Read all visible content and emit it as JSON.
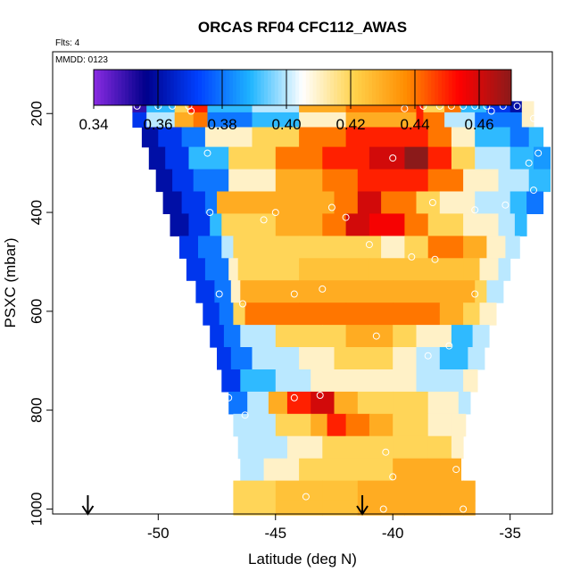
{
  "chart_data": {
    "type": "heatmap",
    "title": "ORCAS RF04 CFC112_AWAS",
    "subtitle_flights": "Flts: 4",
    "subtitle_date": "MMDD: 0123",
    "xlabel": "Latitude (deg N)",
    "ylabel": "PSXC (mbar)",
    "xlim": [
      -54.5,
      -33.2
    ],
    "ylim_reversed": [
      1010,
      75
    ],
    "x_ticks": [
      -50,
      -45,
      -40,
      -35
    ],
    "x_tick_labels": [
      "-50",
      "-45",
      "-40",
      "-35"
    ],
    "y_ticks": [
      200,
      400,
      600,
      800,
      1000
    ],
    "y_tick_labels": [
      "200",
      "400",
      "600",
      "800",
      "1000"
    ],
    "colorbar": {
      "min": 0.34,
      "max": 0.47,
      "ticks": [
        0.34,
        0.36,
        0.38,
        0.4,
        0.42,
        0.44,
        0.46
      ],
      "tick_labels": [
        "0.34",
        "0.36",
        "0.38",
        "0.40",
        "0.42",
        "0.44",
        "0.46"
      ],
      "colors": [
        "#8a2be2",
        "#00008b",
        "#0040ff",
        "#1eb4ff",
        "#ffffff",
        "#ffd24a",
        "#ff8c00",
        "#ff0000",
        "#8b1a1a"
      ]
    },
    "bands": [
      {
        "p": 185,
        "x0": -51.1,
        "x1": -34.0,
        "segs": [
          [
            -51.1,
            0.35
          ],
          [
            -50.5,
            0.39
          ],
          [
            -49.3,
            0.42
          ],
          [
            -48.7,
            0.45
          ],
          [
            -47.9,
            0.39
          ],
          [
            -46,
            0.4
          ],
          [
            -44,
            0.43
          ],
          [
            -42,
            0.44
          ],
          [
            -40,
            0.44
          ],
          [
            -39,
            0.45
          ],
          [
            -38.7,
            0.42
          ],
          [
            -37.8,
            0.44
          ],
          [
            -37.1,
            0.39
          ],
          [
            -36,
            0.37
          ],
          [
            -35,
            0.36
          ],
          [
            -34.5,
            0.41
          ]
        ]
      },
      {
        "p": 210,
        "x0": -51.1,
        "x1": -34.0,
        "segs": [
          [
            -51.1,
            0.37
          ],
          [
            -50.5,
            0.4
          ],
          [
            -49.3,
            0.43
          ],
          [
            -48.5,
            0.44
          ],
          [
            -47.9,
            0.38
          ],
          [
            -46,
            0.39
          ],
          [
            -44,
            0.41
          ],
          [
            -42,
            0.43
          ],
          [
            -40,
            0.43
          ],
          [
            -39,
            0.45
          ],
          [
            -38.7,
            0.44
          ],
          [
            -37.8,
            0.4
          ],
          [
            -36.5,
            0.38
          ],
          [
            -35,
            0.38
          ],
          [
            -34.5,
            0.41
          ]
        ]
      },
      {
        "p": 245,
        "x0": -50.7,
        "x1": -33.6,
        "segs": [
          [
            -50.7,
            0.36
          ],
          [
            -50,
            0.37
          ],
          [
            -49,
            0.38
          ],
          [
            -48,
            0.41
          ],
          [
            -46,
            0.42
          ],
          [
            -44,
            0.44
          ],
          [
            -42,
            0.45
          ],
          [
            -40,
            0.45
          ],
          [
            -38.5,
            0.44
          ],
          [
            -37.5,
            0.41
          ],
          [
            -36.5,
            0.39
          ],
          [
            -35,
            0.38
          ],
          [
            -34.2,
            0.39
          ]
        ]
      },
      {
        "p": 290,
        "x0": -50.4,
        "x1": -33.3,
        "segs": [
          [
            -50.4,
            0.36
          ],
          [
            -49.7,
            0.37
          ],
          [
            -48.7,
            0.39
          ],
          [
            -47,
            0.42
          ],
          [
            -45,
            0.44
          ],
          [
            -43,
            0.45
          ],
          [
            -41,
            0.46
          ],
          [
            -39.5,
            0.47
          ],
          [
            -38.5,
            0.45
          ],
          [
            -37.5,
            0.42
          ],
          [
            -36.5,
            0.4
          ],
          [
            -35,
            0.39
          ],
          [
            -34,
            0.385
          ]
        ]
      },
      {
        "p": 335,
        "x0": -50.1,
        "x1": -33.3,
        "segs": [
          [
            -50.1,
            0.36
          ],
          [
            -49.4,
            0.37
          ],
          [
            -48.5,
            0.38
          ],
          [
            -47,
            0.41
          ],
          [
            -45,
            0.43
          ],
          [
            -43,
            0.44
          ],
          [
            -41.5,
            0.45
          ],
          [
            -39.5,
            0.45
          ],
          [
            -38.5,
            0.44
          ],
          [
            -37,
            0.41
          ],
          [
            -35.5,
            0.4
          ],
          [
            -34.2,
            0.39
          ]
        ]
      },
      {
        "p": 380,
        "x0": -49.8,
        "x1": -33.6,
        "segs": [
          [
            -49.8,
            0.36
          ],
          [
            -49,
            0.37
          ],
          [
            -48,
            0.38
          ],
          [
            -47.5,
            0.43
          ],
          [
            -46,
            0.43
          ],
          [
            -44,
            0.43
          ],
          [
            -42.5,
            0.44
          ],
          [
            -41.5,
            0.46
          ],
          [
            -40.5,
            0.44
          ],
          [
            -39,
            0.42
          ],
          [
            -38,
            0.41
          ],
          [
            -36.5,
            0.4
          ],
          [
            -35,
            0.39
          ],
          [
            -34.3,
            0.38
          ]
        ]
      },
      {
        "p": 425,
        "x0": -49.5,
        "x1": -34.3,
        "segs": [
          [
            -49.5,
            0.36
          ],
          [
            -48.7,
            0.37
          ],
          [
            -47.8,
            0.39
          ],
          [
            -47.3,
            0.42
          ],
          [
            -45,
            0.43
          ],
          [
            -43,
            0.44
          ],
          [
            -42,
            0.46
          ],
          [
            -41,
            0.455
          ],
          [
            -39.5,
            0.44
          ],
          [
            -38.5,
            0.42
          ],
          [
            -37,
            0.41
          ],
          [
            -35.5,
            0.4
          ],
          [
            -34.8,
            0.39
          ]
        ]
      },
      {
        "p": 470,
        "x0": -49.1,
        "x1": -34.6,
        "segs": [
          [
            -49.1,
            0.37
          ],
          [
            -48.3,
            0.38
          ],
          [
            -47.3,
            0.4
          ],
          [
            -46.8,
            0.42
          ],
          [
            -44,
            0.42
          ],
          [
            -42,
            0.42
          ],
          [
            -40.5,
            0.41
          ],
          [
            -39.5,
            0.42
          ],
          [
            -38.5,
            0.44
          ],
          [
            -37,
            0.43
          ],
          [
            -36,
            0.41
          ],
          [
            -35.2,
            0.4
          ]
        ]
      },
      {
        "p": 515,
        "x0": -48.8,
        "x1": -35.0,
        "segs": [
          [
            -48.8,
            0.37
          ],
          [
            -48,
            0.38
          ],
          [
            -47,
            0.41
          ],
          [
            -46.6,
            0.42
          ],
          [
            -44,
            0.425
          ],
          [
            -41,
            0.425
          ],
          [
            -39,
            0.425
          ],
          [
            -37,
            0.425
          ],
          [
            -36.3,
            0.41
          ],
          [
            -35.5,
            0.4
          ]
        ]
      },
      {
        "p": 560,
        "x0": -48.4,
        "x1": -35.3,
        "segs": [
          [
            -48.4,
            0.37
          ],
          [
            -47.6,
            0.38
          ],
          [
            -46.9,
            0.41
          ],
          [
            -46.5,
            0.43
          ],
          [
            -44,
            0.43
          ],
          [
            -42,
            0.43
          ],
          [
            -40,
            0.43
          ],
          [
            -38,
            0.43
          ],
          [
            -36.5,
            0.42
          ],
          [
            -36,
            0.4
          ]
        ]
      },
      {
        "p": 605,
        "x0": -48.1,
        "x1": -35.6,
        "segs": [
          [
            -48.1,
            0.37
          ],
          [
            -47.4,
            0.38
          ],
          [
            -46.8,
            0.42
          ],
          [
            -46.3,
            0.44
          ],
          [
            -44,
            0.44
          ],
          [
            -42,
            0.44
          ],
          [
            -40,
            0.44
          ],
          [
            -38,
            0.43
          ],
          [
            -37,
            0.42
          ],
          [
            -36.3,
            0.41
          ]
        ]
      },
      {
        "p": 650,
        "x0": -47.8,
        "x1": -35.9,
        "segs": [
          [
            -47.8,
            0.37
          ],
          [
            -47.2,
            0.38
          ],
          [
            -46.5,
            0.4
          ],
          [
            -45,
            0.42
          ],
          [
            -43,
            0.42
          ],
          [
            -42,
            0.43
          ],
          [
            -41,
            0.43
          ],
          [
            -40,
            0.42
          ],
          [
            -39,
            0.41
          ],
          [
            -37.5,
            0.39
          ],
          [
            -36.6,
            0.4
          ]
        ]
      },
      {
        "p": 695,
        "x0": -47.5,
        "x1": -36.1,
        "segs": [
          [
            -47.5,
            0.37
          ],
          [
            -46.9,
            0.38
          ],
          [
            -46,
            0.4
          ],
          [
            -44,
            0.41
          ],
          [
            -42.5,
            0.42
          ],
          [
            -41,
            0.42
          ],
          [
            -40,
            0.41
          ],
          [
            -39,
            0.4
          ],
          [
            -38,
            0.39
          ],
          [
            -36.8,
            0.4
          ]
        ]
      },
      {
        "p": 740,
        "x0": -47.3,
        "x1": -36.4,
        "segs": [
          [
            -47.3,
            0.37
          ],
          [
            -46.5,
            0.39
          ],
          [
            -45,
            0.4
          ],
          [
            -43.5,
            0.41
          ],
          [
            -42,
            0.41
          ],
          [
            -40.5,
            0.41
          ],
          [
            -39,
            0.4
          ],
          [
            -37.5,
            0.4
          ],
          [
            -37,
            0.41
          ]
        ]
      },
      {
        "p": 785,
        "x0": -47.0,
        "x1": -36.7,
        "segs": [
          [
            -47.0,
            0.38
          ],
          [
            -46.2,
            0.4
          ],
          [
            -45.3,
            0.43
          ],
          [
            -44.5,
            0.45
          ],
          [
            -43.5,
            0.46
          ],
          [
            -42.5,
            0.43
          ],
          [
            -41.5,
            0.42
          ],
          [
            -40,
            0.42
          ],
          [
            -38.5,
            0.41
          ],
          [
            -37.2,
            0.4
          ]
        ]
      },
      {
        "p": 830,
        "x0": -46.8,
        "x1": -36.9,
        "segs": [
          [
            -46.8,
            0.4
          ],
          [
            -46,
            0.4
          ],
          [
            -45,
            0.42
          ],
          [
            -43.5,
            0.43
          ],
          [
            -42.8,
            0.45
          ],
          [
            -42,
            0.44
          ],
          [
            -41,
            0.43
          ],
          [
            -40,
            0.42
          ],
          [
            -38.5,
            0.41
          ],
          [
            -37.5,
            0.41
          ]
        ]
      },
      {
        "p": 875,
        "x0": -46.6,
        "x1": -37.0,
        "segs": [
          [
            -46.6,
            0.4
          ],
          [
            -45.8,
            0.4
          ],
          [
            -44.5,
            0.41
          ],
          [
            -43,
            0.42
          ],
          [
            -42,
            0.42
          ],
          [
            -41,
            0.42
          ],
          [
            -40,
            0.42
          ],
          [
            -38.5,
            0.42
          ],
          [
            -37.5,
            0.41
          ]
        ]
      },
      {
        "p": 920,
        "x0": -46.5,
        "x1": -37.1,
        "segs": [
          [
            -46.5,
            0.4
          ],
          [
            -45.5,
            0.41
          ],
          [
            -44,
            0.42
          ],
          [
            -42.5,
            0.42
          ],
          [
            -41.5,
            0.42
          ],
          [
            -40,
            0.43
          ],
          [
            -38.5,
            0.43
          ],
          [
            -37.5,
            0.43
          ]
        ]
      },
      {
        "p": 965,
        "x0": -46.8,
        "x1": -36.5,
        "segs": [
          [
            -46.8,
            0.42
          ],
          [
            -45,
            0.425
          ],
          [
            -43,
            0.425
          ],
          [
            -41.5,
            0.43
          ],
          [
            -39.5,
            0.43
          ],
          [
            -38,
            0.43
          ],
          [
            -37,
            0.43
          ]
        ]
      },
      {
        "p": 1000,
        "x0": -46.8,
        "x1": -36.5,
        "segs": [
          [
            -46.8,
            0.42
          ],
          [
            -45,
            0.425
          ],
          [
            -43,
            0.425
          ],
          [
            -41.5,
            0.43
          ],
          [
            -39.5,
            0.43
          ],
          [
            -38,
            0.43
          ],
          [
            -37,
            0.43
          ]
        ]
      }
    ],
    "samples": [
      [
        -50.9,
        185
      ],
      [
        -50.0,
        185
      ],
      [
        -49.4,
        185
      ],
      [
        -48.7,
        185
      ],
      [
        -48.6,
        195
      ],
      [
        -39.5,
        190
      ],
      [
        -38.7,
        185
      ],
      [
        -38.0,
        185
      ],
      [
        -37.5,
        185
      ],
      [
        -37.0,
        185
      ],
      [
        -36.5,
        185
      ],
      [
        -36.0,
        185
      ],
      [
        -35.3,
        185
      ],
      [
        -34.7,
        185
      ],
      [
        -35.8,
        195
      ],
      [
        -34.0,
        210
      ],
      [
        -47.9,
        280
      ],
      [
        -40.0,
        290
      ],
      [
        -33.8,
        280
      ],
      [
        -34.2,
        300
      ],
      [
        -47.8,
        400
      ],
      [
        -45.5,
        415
      ],
      [
        -45.0,
        400
      ],
      [
        -42.6,
        390
      ],
      [
        -42.0,
        410
      ],
      [
        -41.0,
        465
      ],
      [
        -38.3,
        380
      ],
      [
        -36.5,
        395
      ],
      [
        -35.2,
        385
      ],
      [
        -34.0,
        355
      ],
      [
        -39.2,
        490
      ],
      [
        -38.2,
        495
      ],
      [
        -36.5,
        565
      ],
      [
        -47.4,
        565
      ],
      [
        -46.4,
        585
      ],
      [
        -44.2,
        565
      ],
      [
        -43.0,
        555
      ],
      [
        -40.7,
        650
      ],
      [
        -38.5,
        690
      ],
      [
        -37.6,
        670
      ],
      [
        -47.0,
        775
      ],
      [
        -46.3,
        810
      ],
      [
        -44.2,
        775
      ],
      [
        -43.1,
        770
      ],
      [
        -40.3,
        885
      ],
      [
        -40.0,
        935
      ],
      [
        -37.3,
        920
      ],
      [
        -43.7,
        975
      ],
      [
        -47.0,
        985
      ],
      [
        -40.4,
        1000
      ],
      [
        -37.0,
        1000
      ]
    ],
    "arrows": [
      -53.0,
      -41.3
    ]
  }
}
